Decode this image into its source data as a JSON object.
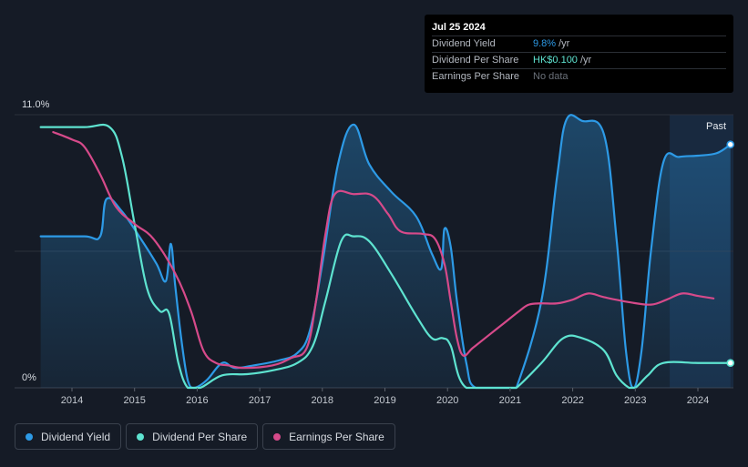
{
  "tooltip": {
    "date": "Jul 25 2024",
    "rows": [
      {
        "label": "Dividend Yield",
        "value": "9.8%",
        "unit": "/yr"
      },
      {
        "label": "Dividend Per Share",
        "value": "HK$0.100",
        "unit": "/yr"
      },
      {
        "label": "Earnings Per Share",
        "value": "No data",
        "unit": ""
      }
    ]
  },
  "legend": [
    {
      "label": "Dividend Yield",
      "color": "#2d9ae6"
    },
    {
      "label": "Dividend Per Share",
      "color": "#5ee3d0"
    },
    {
      "label": "Earnings Per Share",
      "color": "#d64a8a"
    }
  ],
  "chart_data": {
    "type": "line",
    "y_top_label": "11.0%",
    "y_bottom_label": "0%",
    "past_label": "Past",
    "ylim": [
      0,
      11.0
    ],
    "xlim": [
      2013.4,
      2024.55
    ],
    "x_ticks": [
      2014,
      2015,
      2016,
      2017,
      2018,
      2019,
      2020,
      2021,
      2022,
      2023,
      2024
    ],
    "grid_y": [
      0,
      5.5,
      11.0
    ],
    "past_region_start": 2023.55,
    "series": [
      {
        "name": "Dividend Yield",
        "color": "#2d9ae6",
        "filled": true,
        "points": [
          [
            2013.5,
            6.1
          ],
          [
            2014.2,
            6.1
          ],
          [
            2014.45,
            6.1
          ],
          [
            2014.55,
            7.6
          ],
          [
            2014.8,
            7.1
          ],
          [
            2015.1,
            6.0
          ],
          [
            2015.35,
            5.0
          ],
          [
            2015.5,
            4.3
          ],
          [
            2015.58,
            5.8
          ],
          [
            2015.65,
            4.1
          ],
          [
            2015.75,
            1.9
          ],
          [
            2015.85,
            0.3
          ],
          [
            2015.95,
            0.0
          ],
          [
            2016.15,
            0.3
          ],
          [
            2016.4,
            1.0
          ],
          [
            2016.6,
            0.8
          ],
          [
            2016.9,
            0.9
          ],
          [
            2017.3,
            1.1
          ],
          [
            2017.6,
            1.4
          ],
          [
            2017.8,
            2.3
          ],
          [
            2018.0,
            5.0
          ],
          [
            2018.25,
            9.0
          ],
          [
            2018.5,
            10.6
          ],
          [
            2018.75,
            9.0
          ],
          [
            2019.1,
            7.9
          ],
          [
            2019.5,
            6.9
          ],
          [
            2019.75,
            5.4
          ],
          [
            2019.9,
            4.8
          ],
          [
            2019.95,
            6.4
          ],
          [
            2020.05,
            5.7
          ],
          [
            2020.15,
            3.5
          ],
          [
            2020.3,
            1.0
          ],
          [
            2020.45,
            0.0
          ],
          [
            2021.0,
            0.0
          ],
          [
            2021.1,
            0.0
          ],
          [
            2021.5,
            3.5
          ],
          [
            2021.75,
            8.5
          ],
          [
            2021.9,
            10.8
          ],
          [
            2022.15,
            10.75
          ],
          [
            2022.5,
            10.2
          ],
          [
            2022.7,
            6.0
          ],
          [
            2022.85,
            1.5
          ],
          [
            2022.97,
            0.0
          ],
          [
            2023.1,
            1.5
          ],
          [
            2023.25,
            5.5
          ],
          [
            2023.45,
            9.1
          ],
          [
            2023.7,
            9.3
          ],
          [
            2024.0,
            9.35
          ],
          [
            2024.3,
            9.45
          ],
          [
            2024.52,
            9.8
          ]
        ]
      },
      {
        "name": "Dividend Per Share",
        "color": "#5ee3d0",
        "filled": false,
        "points": [
          [
            2013.5,
            10.5
          ],
          [
            2014.2,
            10.5
          ],
          [
            2014.6,
            10.5
          ],
          [
            2014.8,
            9.3
          ],
          [
            2015.0,
            6.6
          ],
          [
            2015.2,
            4.0
          ],
          [
            2015.4,
            3.1
          ],
          [
            2015.55,
            3.0
          ],
          [
            2015.7,
            1.0
          ],
          [
            2015.85,
            0.0
          ],
          [
            2016.05,
            0.0
          ],
          [
            2016.4,
            0.5
          ],
          [
            2016.8,
            0.55
          ],
          [
            2017.2,
            0.7
          ],
          [
            2017.6,
            1.0
          ],
          [
            2017.85,
            1.7
          ],
          [
            2018.05,
            3.5
          ],
          [
            2018.3,
            5.9
          ],
          [
            2018.5,
            6.1
          ],
          [
            2018.75,
            5.9
          ],
          [
            2019.1,
            4.6
          ],
          [
            2019.5,
            2.9
          ],
          [
            2019.75,
            2.0
          ],
          [
            2019.92,
            2.0
          ],
          [
            2020.05,
            1.7
          ],
          [
            2020.3,
            0.0
          ],
          [
            2021.0,
            0.0
          ],
          [
            2021.1,
            0.0
          ],
          [
            2021.5,
            1.0
          ],
          [
            2021.85,
            2.0
          ],
          [
            2022.15,
            2.0
          ],
          [
            2022.5,
            1.5
          ],
          [
            2022.7,
            0.5
          ],
          [
            2022.9,
            0.0
          ],
          [
            2023.0,
            0.0
          ],
          [
            2023.2,
            0.5
          ],
          [
            2023.45,
            1.0
          ],
          [
            2024.0,
            1.0
          ],
          [
            2024.52,
            1.0
          ]
        ]
      },
      {
        "name": "Earnings Per Share",
        "color": "#d64a8a",
        "filled": false,
        "points": [
          [
            2013.7,
            10.3
          ],
          [
            2014.0,
            10.0
          ],
          [
            2014.2,
            9.7
          ],
          [
            2014.45,
            8.6
          ],
          [
            2014.7,
            7.3
          ],
          [
            2015.0,
            6.6
          ],
          [
            2015.3,
            6.0
          ],
          [
            2015.65,
            4.6
          ],
          [
            2015.9,
            3.1
          ],
          [
            2016.1,
            1.5
          ],
          [
            2016.3,
            1.0
          ],
          [
            2016.5,
            0.9
          ],
          [
            2016.75,
            0.8
          ],
          [
            2017.2,
            0.9
          ],
          [
            2017.5,
            1.2
          ],
          [
            2017.75,
            1.6
          ],
          [
            2017.9,
            3.5
          ],
          [
            2018.05,
            6.2
          ],
          [
            2018.2,
            7.8
          ],
          [
            2018.5,
            7.8
          ],
          [
            2018.8,
            7.75
          ],
          [
            2019.05,
            7.0
          ],
          [
            2019.25,
            6.3
          ],
          [
            2019.6,
            6.2
          ],
          [
            2019.8,
            6.0
          ],
          [
            2019.95,
            5.0
          ],
          [
            2020.05,
            3.5
          ],
          [
            2020.15,
            2.0
          ],
          [
            2020.25,
            1.3
          ],
          [
            2020.4,
            1.6
          ],
          [
            2020.6,
            2.0
          ],
          [
            2020.9,
            2.6
          ],
          [
            2021.15,
            3.1
          ],
          [
            2021.3,
            3.35
          ],
          [
            2021.5,
            3.4
          ],
          [
            2021.75,
            3.4
          ],
          [
            2022.0,
            3.55
          ],
          [
            2022.25,
            3.8
          ],
          [
            2022.5,
            3.65
          ],
          [
            2022.9,
            3.45
          ],
          [
            2023.25,
            3.35
          ],
          [
            2023.5,
            3.55
          ],
          [
            2023.75,
            3.8
          ],
          [
            2024.0,
            3.7
          ],
          [
            2024.25,
            3.6
          ]
        ]
      }
    ],
    "end_markers": [
      {
        "series": "Dividend Yield",
        "x": 2024.52,
        "y": 9.8
      },
      {
        "series": "Dividend Per Share",
        "x": 2024.52,
        "y": 1.0
      }
    ]
  }
}
